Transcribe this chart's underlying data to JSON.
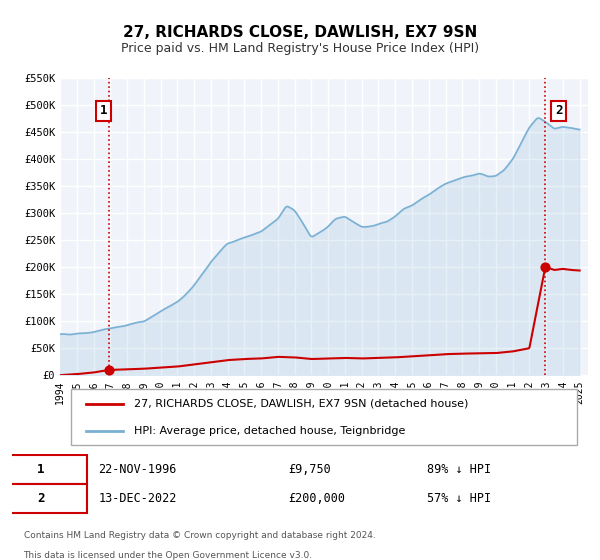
{
  "title": "27, RICHARDS CLOSE, DAWLISH, EX7 9SN",
  "subtitle": "Price paid vs. HM Land Registry's House Price Index (HPI)",
  "xlabel": "",
  "ylabel": "",
  "ylim": [
    0,
    550000
  ],
  "xlim_start": 1994.0,
  "xlim_end": 2025.5,
  "bg_color": "#ffffff",
  "plot_bg_color": "#f0f4fa",
  "grid_color": "#ffffff",
  "hpi_color": "#7ab0d4",
  "price_color": "#cc0000",
  "marker1_date": 1996.9,
  "marker1_price": 9750,
  "marker1_label": "22-NOV-1996",
  "marker1_amount": "£9,750",
  "marker1_hpi": "89% ↓ HPI",
  "marker2_date": 2022.95,
  "marker2_price": 200000,
  "marker2_label": "13-DEC-2022",
  "marker2_amount": "£200,000",
  "marker2_hpi": "57% ↓ HPI",
  "legend_label1": "27, RICHARDS CLOSE, DAWLISH, EX7 9SN (detached house)",
  "legend_label2": "HPI: Average price, detached house, Teignbridge",
  "footer1": "Contains HM Land Registry data © Crown copyright and database right 2024.",
  "footer2": "This data is licensed under the Open Government Licence v3.0.",
  "yticks": [
    0,
    50000,
    100000,
    150000,
    200000,
    250000,
    300000,
    350000,
    400000,
    450000,
    500000,
    550000
  ],
  "ytick_labels": [
    "£0",
    "£50K",
    "£100K",
    "£150K",
    "£200K",
    "£250K",
    "£300K",
    "£350K",
    "£400K",
    "£450K",
    "£500K",
    "£550K"
  ],
  "xtick_years": [
    1994,
    1995,
    1996,
    1997,
    1998,
    1999,
    2000,
    2001,
    2002,
    2003,
    2004,
    2005,
    2006,
    2007,
    2008,
    2009,
    2010,
    2011,
    2012,
    2013,
    2014,
    2015,
    2016,
    2017,
    2018,
    2019,
    2020,
    2021,
    2022,
    2023,
    2024,
    2025
  ]
}
